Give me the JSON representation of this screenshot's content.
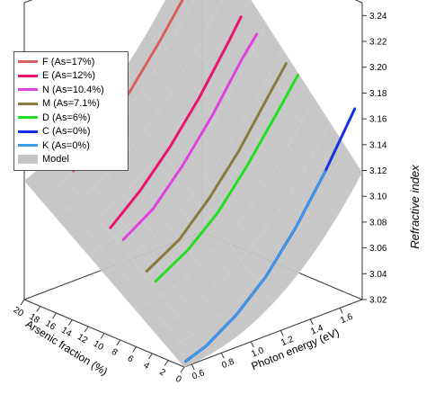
{
  "chart_data": {
    "type": "surface3d",
    "xlabel": "Photon energy (eV)",
    "ylabel": "Arsenic fraction (%)",
    "zlabel": "Refractive index",
    "x_ticks": [
      "0.6",
      "0.8",
      "1.0",
      "1.2",
      "1.4",
      "1.6"
    ],
    "y_ticks": [
      "0",
      "2",
      "4",
      "6",
      "8",
      "10",
      "12",
      "14",
      "16",
      "18",
      "20"
    ],
    "z_ticks": [
      "3.02",
      "3.04",
      "3.06",
      "3.08",
      "3.10",
      "3.12",
      "3.14",
      "3.16",
      "3.18",
      "3.20",
      "3.22",
      "3.24"
    ],
    "zlim": [
      3.02,
      3.25
    ],
    "xlim": [
      0.55,
      1.75
    ],
    "ylim": [
      0,
      20
    ],
    "legend_position": "top-left",
    "series": [
      {
        "name": "F (As=17%)",
        "color": "#d95f5f",
        "as": 17,
        "x": [
          0.72,
          0.9,
          1.1,
          1.3,
          1.5,
          1.55
        ],
        "z": [
          3.12,
          3.14,
          3.165,
          3.195,
          3.228,
          3.235
        ]
      },
      {
        "name": "E (As=12%)",
        "color": "#e8146e",
        "as": 12,
        "x": [
          0.7,
          0.9,
          1.1,
          1.3,
          1.5,
          1.58
        ],
        "z": [
          3.09,
          3.11,
          3.135,
          3.165,
          3.2,
          3.215
        ]
      },
      {
        "name": "N (As=10.4%)",
        "color": "#e040e0",
        "as": 10.4,
        "x": [
          0.7,
          0.9,
          1.1,
          1.3,
          1.5,
          1.6
        ],
        "z": [
          3.085,
          3.1,
          3.125,
          3.155,
          3.19,
          3.205
        ]
      },
      {
        "name": "M (As=7.1%)",
        "color": "#8b7a3e",
        "as": 7.1,
        "x": [
          0.68,
          0.9,
          1.1,
          1.3,
          1.5,
          1.62
        ],
        "z": [
          3.07,
          3.085,
          3.108,
          3.136,
          3.17,
          3.19
        ]
      },
      {
        "name": "D (As=6%)",
        "color": "#22dd22",
        "as": 6,
        "x": [
          0.68,
          0.9,
          1.1,
          1.3,
          1.5,
          1.64
        ],
        "z": [
          3.065,
          3.08,
          3.1,
          3.128,
          3.16,
          3.183
        ]
      },
      {
        "name": "C (As=0%)",
        "color": "#1530e0",
        "as": 0,
        "x": [
          0.56,
          0.7,
          0.9,
          1.1,
          1.3,
          1.5,
          1.7
        ],
        "z": [
          3.024,
          3.03,
          3.045,
          3.066,
          3.095,
          3.13,
          3.17
        ]
      },
      {
        "name": "K (As=0%)",
        "color": "#3c9ce8",
        "as": 0,
        "x": [
          0.56,
          0.7,
          0.9,
          1.1,
          1.3,
          1.5
        ],
        "z": [
          3.024,
          3.03,
          3.045,
          3.066,
          3.095,
          3.13
        ]
      }
    ],
    "model": {
      "name": "Model",
      "color": "#c4c4c4"
    }
  }
}
